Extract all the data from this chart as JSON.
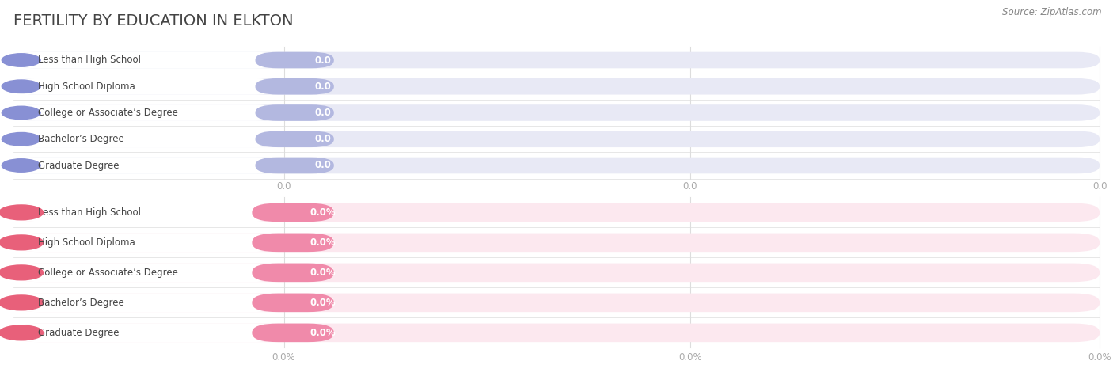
{
  "title": "FERTILITY BY EDUCATION IN ELKTON",
  "source": "Source: ZipAtlas.com",
  "categories": [
    "Less than High School",
    "High School Diploma",
    "College or Associate’s Degree",
    "Bachelor’s Degree",
    "Graduate Degree"
  ],
  "top_labels": [
    "0.0",
    "0.0",
    "0.0",
    "0.0",
    "0.0"
  ],
  "bottom_labels": [
    "0.0%",
    "0.0%",
    "0.0%",
    "0.0%",
    "0.0%"
  ],
  "top_bar_fill": "#b3b8e0",
  "top_bar_bg": "#e8e9f5",
  "top_label_bg": "#ffffff",
  "top_circle_color": "#8890d4",
  "bottom_bar_fill": "#f08aaa",
  "bottom_bar_bg": "#fce8ef",
  "bottom_label_bg": "#ffffff",
  "bottom_circle_color": "#e8607a",
  "title_color": "#444444",
  "source_color": "#888888",
  "axis_tick_color": "#aaaaaa",
  "grid_color": "#dddddd",
  "bg_color": "#ffffff",
  "top_xticks": [
    "0.0",
    "0.0",
    "0.0"
  ],
  "bottom_xticks": [
    "0.0%",
    "0.0%",
    "0.0%"
  ],
  "top_val_color": "#9090cc",
  "bottom_val_color": "#dd6688"
}
